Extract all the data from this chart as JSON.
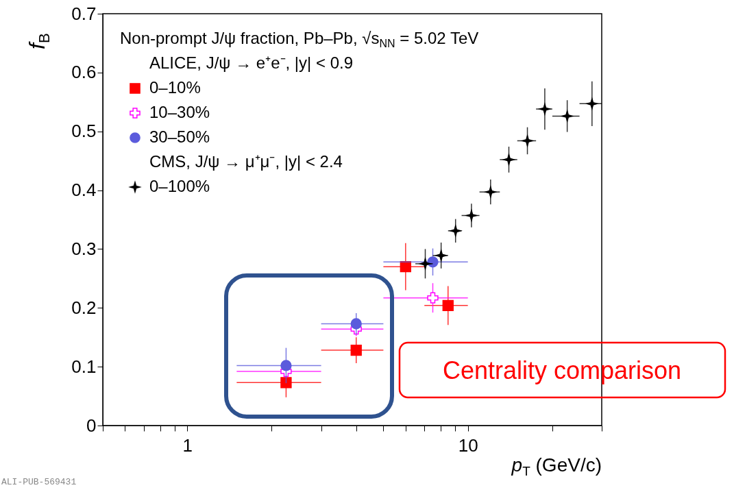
{
  "chart_data": {
    "type": "scatter",
    "title": "Non-prompt J/ψ fraction, Pb–Pb, √s$_{NN}$ = 5.02 TeV",
    "xlabel": "p$_{T}$ (GeV/c)",
    "ylabel": "f$_{B}$",
    "log": "x",
    "grid": false,
    "legend": "top left",
    "xlim": [
      0.5,
      30
    ],
    "ylim": [
      0,
      0.7
    ],
    "xticks": [
      {
        "value": 0.5,
        "label": null
      },
      {
        "value": 0.6,
        "label": null
      },
      {
        "value": 0.7,
        "label": null
      },
      {
        "value": 0.8,
        "label": null
      },
      {
        "value": 0.9,
        "label": null
      },
      1,
      {
        "value": 2,
        "label": null
      },
      {
        "value": 3,
        "label": null
      },
      {
        "value": 4,
        "label": null
      },
      {
        "value": 5,
        "label": null
      },
      {
        "value": 6,
        "label": null
      },
      {
        "value": 7,
        "label": null
      },
      {
        "value": 8,
        "label": null
      },
      {
        "value": 9,
        "label": null
      },
      10,
      {
        "value": 20,
        "label": null
      },
      {
        "value": 30,
        "label": null
      }
    ],
    "yticks": [
      0,
      0.1,
      0.2,
      0.3,
      0.4,
      0.5,
      0.6,
      0.7
    ],
    "annotations": [
      "ALICE, J/ψ → e⁺e⁻, |y| < 0.9",
      "CMS, J/ψ → μ⁺μ⁻, |y| < 2.4",
      "Centrality comparison",
      "ALI-PUB-569431"
    ],
    "series": [
      {
        "name": "0–10%",
        "color": "#ff0000",
        "marker": "square",
        "x": [
          2.25,
          4.0,
          6.0,
          8.5
        ],
        "values": [
          0.073,
          0.128,
          0.27,
          0.204
        ],
        "errors": [
          0.025,
          0.022,
          0.04,
          0.033
        ],
        "xerrors": [
          [
            1.5,
            3
          ],
          [
            3,
            5
          ],
          [
            5,
            7
          ],
          [
            7,
            10
          ]
        ]
      },
      {
        "name": "10–30%",
        "color": "#ff00ff",
        "marker": "cross",
        "x": [
          2.25,
          4.0,
          7.5
        ],
        "values": [
          0.092,
          0.164,
          0.217
        ],
        "errors": [
          0.01,
          0.012,
          0.025
        ],
        "xerrors": [
          [
            1.5,
            3
          ],
          [
            3,
            5
          ],
          [
            5,
            10
          ]
        ]
      },
      {
        "name": "30–50%",
        "color": "#5b5bdc",
        "marker": "circle",
        "x": [
          2.25,
          4.0,
          7.5
        ],
        "values": [
          0.102,
          0.173,
          0.278
        ],
        "errors": [
          0.03,
          0.018,
          0.023
        ],
        "xerrors": [
          [
            1.5,
            3
          ],
          [
            3,
            5
          ],
          [
            5,
            10
          ]
        ]
      },
      {
        "name": "0–100%",
        "color": "#000000",
        "marker": "star",
        "x": [
          7.05,
          8.03,
          9.04,
          10.3,
          12.05,
          14.0,
          16.3,
          18.8,
          22.6,
          27.7
        ],
        "values": [
          0.275,
          0.289,
          0.331,
          0.357,
          0.397,
          0.452,
          0.484,
          0.538,
          0.526,
          0.547
        ],
        "errors": [
          0.025,
          0.022,
          0.02,
          0.02,
          0.021,
          0.022,
          0.023,
          0.035,
          0.027,
          0.038
        ],
        "xerrors": [
          [
            6.5,
            7.5
          ],
          [
            7.5,
            8.5
          ],
          [
            8.5,
            9.5
          ],
          [
            9.5,
            11
          ],
          [
            11,
            13
          ],
          [
            13,
            15
          ],
          [
            15,
            17.5
          ],
          [
            17.5,
            20
          ],
          [
            20,
            25
          ],
          [
            25,
            30
          ]
        ]
      }
    ]
  }
}
